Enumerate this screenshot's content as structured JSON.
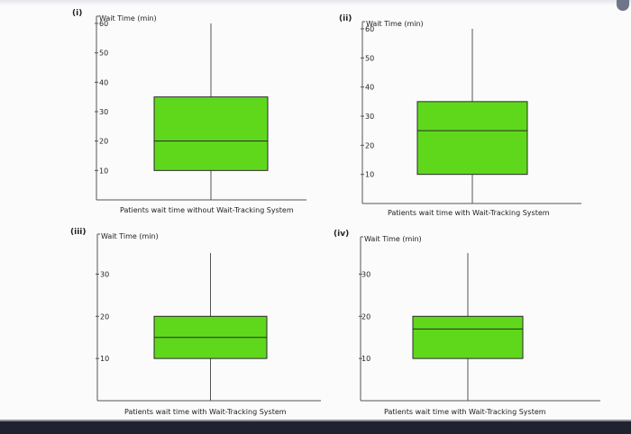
{
  "colors": {
    "box_fill": "#5fd81c",
    "box_stroke": "#2a2a2a",
    "axis": "#555555",
    "text": "#222222"
  },
  "chart_data": [
    {
      "type": "boxplot",
      "panel_label": "(i)",
      "ylabel": "Wait Time (min)",
      "xlabel": "Patients wait time without Wait-Tracking System",
      "yticks": [
        10,
        20,
        30,
        40,
        50,
        60
      ],
      "whisker_low": 0,
      "q1": 10,
      "median": 20,
      "q3": 35,
      "whisker_high": 60
    },
    {
      "type": "boxplot",
      "panel_label": "(ii)",
      "ylabel": "Wait Time (min)",
      "xlabel": "Patients wait time with Wait-Tracking System",
      "yticks": [
        10,
        20,
        30,
        40,
        50,
        60
      ],
      "whisker_low": 0,
      "q1": 10,
      "median": 25,
      "q3": 35,
      "whisker_high": 60
    },
    {
      "type": "boxplot",
      "panel_label": "(iii)",
      "ylabel": "Wait Time (min)",
      "xlabel": "Patients wait time with Wait-Tracking System",
      "yticks": [
        10,
        20,
        30
      ],
      "whisker_low": 0,
      "q1": 10,
      "median": 15,
      "q3": 20,
      "whisker_high": 35
    },
    {
      "type": "boxplot",
      "panel_label": "(iv)",
      "ylabel": "Wait Time (min)",
      "xlabel": "Patients wait time with Wait-Tracking System",
      "yticks": [
        10,
        20,
        30
      ],
      "whisker_low": 0,
      "q1": 10,
      "median": 17,
      "q3": 20,
      "whisker_high": 35
    }
  ]
}
